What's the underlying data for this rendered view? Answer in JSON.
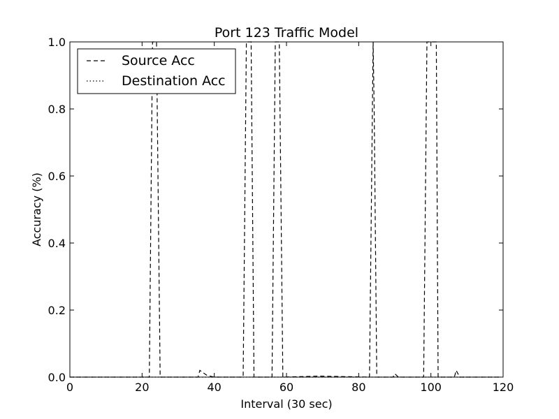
{
  "chart_data": {
    "type": "line",
    "title": "Port 123 Traffic Model",
    "xlabel": "Interval (30 sec)",
    "ylabel": "Accuracy (%)",
    "xlim": [
      0,
      120
    ],
    "ylim": [
      0,
      1.0
    ],
    "x_ticks": [
      0,
      20,
      40,
      60,
      80,
      100,
      120
    ],
    "x_tick_labels": [
      "0",
      "20",
      "40",
      "60",
      "80",
      "100",
      "120"
    ],
    "y_ticks": [
      0,
      0.2,
      0.4,
      0.6,
      0.8,
      1.0
    ],
    "y_tick_labels": [
      "0.0",
      "0.2",
      "0.4",
      "0.6",
      "0.8",
      "1.0"
    ],
    "grid": false,
    "legend_position": "top-left",
    "series": [
      {
        "name": "Source Acc",
        "style": "dashed",
        "color": "#000000",
        "x": [
          0,
          22,
          22.9,
          23.4,
          24,
          25,
          35.5,
          36,
          38,
          40,
          42,
          48,
          48.9,
          49.5,
          50.2,
          51,
          56,
          56.9,
          57.4,
          58,
          59,
          69,
          83,
          84,
          84.3,
          85,
          89.5,
          90,
          91,
          98,
          98.9,
          99.5,
          100.2,
          101,
          101.5,
          102,
          106.5,
          107,
          108,
          119
        ],
        "y": [
          0,
          0,
          1.0,
          1.0,
          1.0,
          0,
          0,
          0.02,
          0.005,
          0,
          0,
          0,
          1.0,
          1.0,
          1.0,
          0,
          0,
          1.0,
          1.0,
          1.0,
          0,
          0.003,
          0,
          1.0,
          0.8,
          0,
          0,
          0.01,
          0,
          0,
          1.0,
          1.0,
          1.0,
          1.0,
          1.0,
          0,
          0,
          0.02,
          0,
          0
        ]
      },
      {
        "name": "Destination Acc",
        "style": "dotted",
        "color": "#000000",
        "x": [
          0,
          30,
          60,
          90,
          119
        ],
        "y": [
          0,
          0,
          0,
          0,
          0
        ]
      }
    ]
  }
}
